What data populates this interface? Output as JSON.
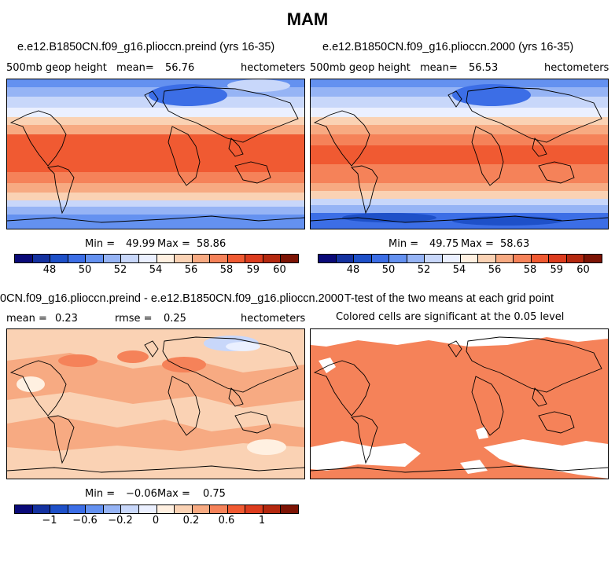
{
  "figure_title": "MAM",
  "panels": {
    "p1": {
      "title": "e.e12.B1850CN.f09_g16.pliocсn.preind (yrs 16-35)",
      "left_label": "500mb geop height",
      "mean_label": "mean=",
      "mean_value": "56.76",
      "units": "hectometers",
      "min_label": "Min =",
      "min_value": "49.99",
      "max_label": "Max =",
      "max_value": "58.86"
    },
    "p2": {
      "title": "e.e12.B1850CN.f09_g16.pliocсn.2000 (yrs 16-35)",
      "left_label": "500mb geop height",
      "mean_label": "mean=",
      "mean_value": "56.53",
      "units": "hectometers",
      "min_label": "Min =",
      "min_value": "49.75",
      "max_label": "Max =",
      "max_value": "58.63"
    },
    "p3": {
      "title": "0CN.f09_g16.pliocсn.preind - e.e12.B1850CN.f09_g16.pliocсn.2000",
      "mean_label": "mean =",
      "mean_value": "0.23",
      "rmse_label": "rmse =",
      "rmse_value": "0.25",
      "units": "hectometers",
      "min_label": "Min =",
      "min_value": "−0.06",
      "max_label": "Max =",
      "max_value": "0.75"
    },
    "p4": {
      "title": "T-test of the two means at each grid point",
      "subtitle": "Colored cells are significant at the 0.05 level"
    }
  },
  "colorbars": {
    "abs": {
      "colors": [
        "#0a0a78",
        "#1432a0",
        "#1e50c8",
        "#3c6ee6",
        "#6491f0",
        "#96b4f5",
        "#c8d7fa",
        "#ebf0ff",
        "#fff0e1",
        "#fad2b4",
        "#f7aa82",
        "#f58259",
        "#f05a32",
        "#dc3c1e",
        "#b4280f",
        "#7d1405"
      ],
      "tick_labels": [
        "48",
        "50",
        "52",
        "54",
        "56",
        "58",
        "59",
        "60"
      ]
    },
    "diff": {
      "colors": [
        "#0a0a78",
        "#1432a0",
        "#1e50c8",
        "#3c6ee6",
        "#6491f0",
        "#96b4f5",
        "#c8d7fa",
        "#ebf0ff",
        "#fff0e1",
        "#fad2b4",
        "#f7aa82",
        "#f58259",
        "#f05a32",
        "#dc3c1e",
        "#b4280f",
        "#7d1405"
      ],
      "tick_labels": [
        "−1",
        "−0.6",
        "−0.2",
        "0",
        "0.2",
        "0.6",
        "1"
      ]
    }
  }
}
